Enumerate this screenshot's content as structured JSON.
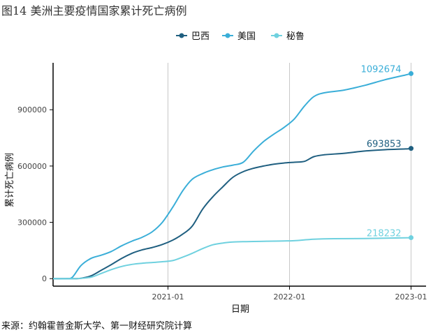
{
  "figure": {
    "title": "图14 美洲主要疫情国家累计死亡病例",
    "source": "来源：约翰霍普金斯大学、第一财经研究院计算"
  },
  "chart_data": {
    "type": "line",
    "xlabel": "日期",
    "ylabel": "累计死亡病例",
    "x_ticks": [
      "2021-01",
      "2022-01",
      "2023-01"
    ],
    "y_ticks": [
      0,
      300000,
      600000,
      900000
    ],
    "xlim": [
      "2020-01-22",
      "2023-02-15"
    ],
    "ylim": [
      -40000,
      1150000
    ],
    "grid": "vertical-major",
    "legend_position": "top",
    "series": [
      {
        "name": "巴西",
        "color": "#1f5f80",
        "end_label": "693853",
        "points": [
          [
            "2020-01-22",
            0
          ],
          [
            "2020-03-15",
            0
          ],
          [
            "2020-04-15",
            2000
          ],
          [
            "2020-05-15",
            15000
          ],
          [
            "2020-06-15",
            45000
          ],
          [
            "2020-07-15",
            75000
          ],
          [
            "2020-08-15",
            108000
          ],
          [
            "2020-09-15",
            135000
          ],
          [
            "2020-10-15",
            153000
          ],
          [
            "2020-11-15",
            166000
          ],
          [
            "2020-12-15",
            182000
          ],
          [
            "2021-01-15",
            205000
          ],
          [
            "2021-02-15",
            238000
          ],
          [
            "2021-03-15",
            280000
          ],
          [
            "2021-04-15",
            370000
          ],
          [
            "2021-05-15",
            435000
          ],
          [
            "2021-06-15",
            490000
          ],
          [
            "2021-07-15",
            540000
          ],
          [
            "2021-08-15",
            570000
          ],
          [
            "2021-09-15",
            588000
          ],
          [
            "2021-10-15",
            600000
          ],
          [
            "2021-11-15",
            610000
          ],
          [
            "2021-12-15",
            616000
          ],
          [
            "2022-01-15",
            620000
          ],
          [
            "2022-02-15",
            625000
          ],
          [
            "2022-03-15",
            650000
          ],
          [
            "2022-04-15",
            660000
          ],
          [
            "2022-06-15",
            668000
          ],
          [
            "2022-08-15",
            680000
          ],
          [
            "2022-10-15",
            687000
          ],
          [
            "2022-12-15",
            691000
          ],
          [
            "2023-01-01",
            693853
          ]
        ]
      },
      {
        "name": "美国",
        "color": "#3aaed8",
        "end_label": "1092674",
        "points": [
          [
            "2020-01-22",
            0
          ],
          [
            "2020-03-01",
            0
          ],
          [
            "2020-03-20",
            8000
          ],
          [
            "2020-04-15",
            70000
          ],
          [
            "2020-05-15",
            108000
          ],
          [
            "2020-06-15",
            125000
          ],
          [
            "2020-07-15",
            145000
          ],
          [
            "2020-08-15",
            175000
          ],
          [
            "2020-09-15",
            200000
          ],
          [
            "2020-10-15",
            220000
          ],
          [
            "2020-11-15",
            250000
          ],
          [
            "2020-12-15",
            300000
          ],
          [
            "2021-01-15",
            380000
          ],
          [
            "2021-02-15",
            470000
          ],
          [
            "2021-03-15",
            530000
          ],
          [
            "2021-04-15",
            560000
          ],
          [
            "2021-05-15",
            580000
          ],
          [
            "2021-06-15",
            595000
          ],
          [
            "2021-07-15",
            605000
          ],
          [
            "2021-08-15",
            620000
          ],
          [
            "2021-09-15",
            680000
          ],
          [
            "2021-10-15",
            730000
          ],
          [
            "2021-11-15",
            770000
          ],
          [
            "2021-12-15",
            805000
          ],
          [
            "2022-01-15",
            850000
          ],
          [
            "2022-02-15",
            920000
          ],
          [
            "2022-03-15",
            970000
          ],
          [
            "2022-04-15",
            990000
          ],
          [
            "2022-06-15",
            1005000
          ],
          [
            "2022-08-15",
            1030000
          ],
          [
            "2022-10-15",
            1060000
          ],
          [
            "2022-12-15",
            1085000
          ],
          [
            "2023-01-01",
            1092674
          ]
        ]
      },
      {
        "name": "秘鲁",
        "color": "#6fd1df",
        "end_label": "218232",
        "points": [
          [
            "2020-01-22",
            0
          ],
          [
            "2020-04-01",
            0
          ],
          [
            "2020-05-15",
            8000
          ],
          [
            "2020-06-15",
            28000
          ],
          [
            "2020-07-15",
            48000
          ],
          [
            "2020-08-15",
            65000
          ],
          [
            "2020-09-15",
            76000
          ],
          [
            "2020-10-15",
            82000
          ],
          [
            "2020-11-15",
            86000
          ],
          [
            "2020-12-15",
            90000
          ],
          [
            "2021-01-15",
            96000
          ],
          [
            "2021-02-15",
            115000
          ],
          [
            "2021-03-15",
            135000
          ],
          [
            "2021-04-15",
            160000
          ],
          [
            "2021-05-15",
            180000
          ],
          [
            "2021-06-15",
            190000
          ],
          [
            "2021-07-15",
            195000
          ],
          [
            "2021-08-15",
            197000
          ],
          [
            "2021-09-15",
            198000
          ],
          [
            "2021-10-15",
            199000
          ],
          [
            "2021-11-15",
            200000
          ],
          [
            "2021-12-15",
            201000
          ],
          [
            "2022-01-15",
            202000
          ],
          [
            "2022-03-15",
            210000
          ],
          [
            "2022-05-15",
            213000
          ],
          [
            "2022-08-15",
            214000
          ],
          [
            "2022-11-15",
            216500
          ],
          [
            "2023-01-01",
            218232
          ]
        ]
      }
    ]
  }
}
